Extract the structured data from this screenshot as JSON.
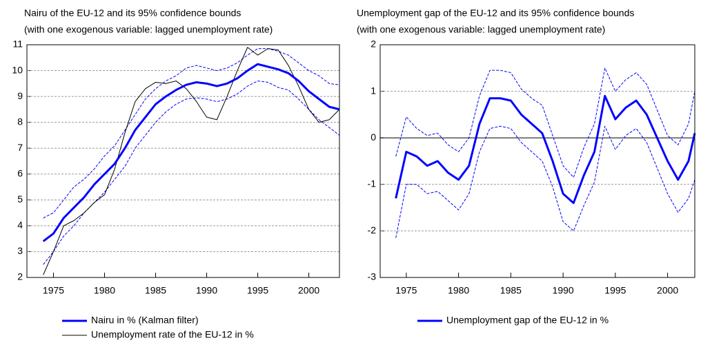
{
  "chart_data": [
    {
      "type": "line",
      "title": "Nairu of the EU-12 and its 95% confidence bounds",
      "subtitle": "(with one exogenous variable: lagged unemployment rate)",
      "x": [
        1974,
        1975,
        1976,
        1977,
        1978,
        1979,
        1980,
        1981,
        1982,
        1983,
        1984,
        1985,
        1986,
        1987,
        1988,
        1989,
        1990,
        1991,
        1992,
        1993,
        1994,
        1995,
        1996,
        1997,
        1998,
        1999,
        2000,
        2001,
        2002,
        2003
      ],
      "xlim": [
        1972.4,
        2003.0
      ],
      "xticks": [
        1975,
        1980,
        1985,
        1990,
        1995,
        2000
      ],
      "ylim": [
        2,
        11
      ],
      "yticks": [
        2,
        3,
        4,
        5,
        6,
        7,
        8,
        9,
        10,
        11
      ],
      "grid": true,
      "zero_line": false,
      "series": [
        {
          "color": "#0000ff",
          "style": "dashed",
          "values": [
            4.3,
            4.5,
            5.0,
            5.5,
            5.8,
            6.2,
            6.7,
            7.1,
            7.7,
            8.3,
            8.9,
            9.3,
            9.6,
            9.8,
            10.1,
            10.2,
            10.1,
            10.0,
            10.1,
            10.3,
            10.6,
            10.85,
            10.85,
            10.75,
            10.6,
            10.3,
            10.0,
            9.8,
            9.5,
            9.45
          ]
        },
        {
          "color": "#0000ff",
          "style": "dashed",
          "values": [
            2.5,
            3.0,
            3.6,
            4.0,
            4.5,
            4.9,
            5.3,
            5.8,
            6.3,
            7.0,
            7.5,
            8.0,
            8.4,
            8.7,
            8.9,
            8.95,
            8.9,
            8.8,
            8.9,
            9.1,
            9.4,
            9.6,
            9.55,
            9.35,
            9.25,
            8.9,
            8.5,
            8.1,
            7.8,
            7.5
          ]
        },
        {
          "name": "Unemployment rate of the EU-12 in %",
          "color": "#000000",
          "style": "thin",
          "values": [
            2.1,
            3.0,
            4.0,
            4.2,
            4.5,
            4.9,
            5.2,
            6.2,
            7.6,
            8.8,
            9.3,
            9.55,
            9.5,
            9.6,
            9.3,
            8.8,
            8.2,
            8.1,
            9.0,
            10.0,
            10.9,
            10.6,
            10.85,
            10.8,
            10.2,
            9.4,
            8.5,
            8.0,
            8.1,
            8.5
          ]
        },
        {
          "name": "Nairu in % (Kalman filter)",
          "color": "#0000ff",
          "style": "bold",
          "values": [
            3.4,
            3.7,
            4.3,
            4.7,
            5.1,
            5.6,
            6.0,
            6.4,
            7.0,
            7.7,
            8.2,
            8.7,
            9.0,
            9.25,
            9.45,
            9.55,
            9.5,
            9.4,
            9.5,
            9.7,
            10.0,
            10.25,
            10.15,
            10.05,
            9.9,
            9.6,
            9.2,
            8.9,
            8.6,
            8.5
          ]
        }
      ],
      "legend_order": [
        3,
        2
      ]
    },
    {
      "type": "line",
      "title": "Unemployment gap of the EU-12 and its 95% confidence bounds",
      "subtitle": "(with one exogenous variable: lagged unemployment rate)",
      "x": [
        1974,
        1975,
        1976,
        1977,
        1978,
        1979,
        1980,
        1981,
        1982,
        1983,
        1984,
        1985,
        1986,
        1987,
        1988,
        1989,
        1990,
        1991,
        1992,
        1993,
        1994,
        1995,
        1996,
        1997,
        1998,
        1999,
        2000,
        2001,
        2002,
        2002.6
      ],
      "xlim": [
        1972.5,
        2002.6
      ],
      "xticks": [
        1975,
        1980,
        1985,
        1990,
        1995,
        2000
      ],
      "ylim": [
        -3,
        2
      ],
      "yticks": [
        -3,
        -2,
        -1,
        0,
        1,
        2
      ],
      "grid": true,
      "zero_line": true,
      "series": [
        {
          "color": "#0000ff",
          "style": "dashed",
          "values": [
            -0.4,
            0.45,
            0.2,
            0.05,
            0.1,
            -0.15,
            -0.3,
            0.0,
            0.9,
            1.45,
            1.45,
            1.4,
            1.05,
            0.85,
            0.7,
            0.05,
            -0.6,
            -0.85,
            -0.2,
            0.3,
            1.5,
            1.0,
            1.25,
            1.4,
            1.15,
            0.6,
            0.05,
            -0.15,
            0.3,
            1.0
          ]
        },
        {
          "color": "#0000ff",
          "style": "dashed",
          "values": [
            -2.15,
            -1.0,
            -1.0,
            -1.2,
            -1.15,
            -1.35,
            -1.55,
            -1.2,
            -0.3,
            0.2,
            0.25,
            0.2,
            -0.1,
            -0.3,
            -0.5,
            -1.05,
            -1.8,
            -2.0,
            -1.45,
            -0.95,
            0.25,
            -0.25,
            0.05,
            0.2,
            -0.1,
            -0.65,
            -1.2,
            -1.6,
            -1.3,
            -0.9
          ]
        },
        {
          "name": "Unemployment gap of the EU-12 in %",
          "color": "#0000ff",
          "style": "bold",
          "values": [
            -1.3,
            -0.3,
            -0.4,
            -0.6,
            -0.5,
            -0.75,
            -0.9,
            -0.6,
            0.3,
            0.85,
            0.85,
            0.8,
            0.5,
            0.3,
            0.1,
            -0.5,
            -1.2,
            -1.4,
            -0.8,
            -0.3,
            0.9,
            0.4,
            0.65,
            0.8,
            0.5,
            0.0,
            -0.5,
            -0.9,
            -0.5,
            0.1
          ]
        }
      ],
      "legend_order": [
        2
      ]
    }
  ]
}
